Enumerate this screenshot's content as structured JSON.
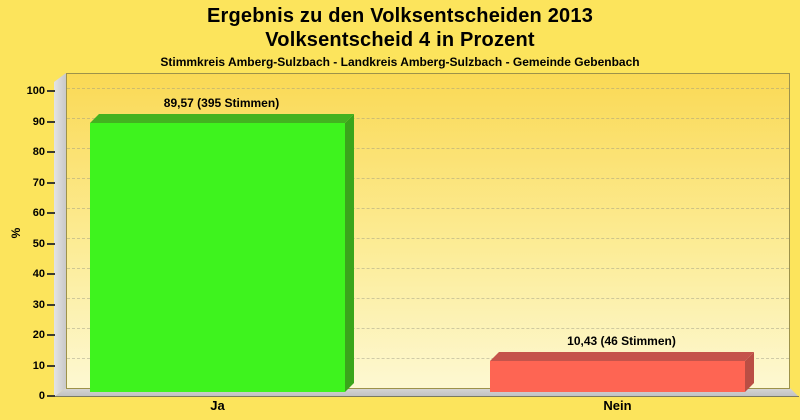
{
  "header": {
    "title_line1": "Ergebnis zu den Volksentscheiden 2013",
    "title_line2": "Volksentscheid 4 in Prozent",
    "subtitle": "Stimmkreis Amberg-Sulzbach - Landkreis Amberg-Sulzbach - Gemeinde Gebenbach"
  },
  "chart_data": {
    "type": "bar",
    "categories": [
      "Ja",
      "Nein"
    ],
    "values": [
      89.57,
      10.43
    ],
    "votes": [
      395,
      46
    ],
    "value_labels": [
      "89,57 (395 Stimmen)",
      "10,43 (46 Stimmen)"
    ],
    "ylabel": "%",
    "ylim": [
      0,
      100
    ],
    "yticks": [
      0,
      10,
      20,
      30,
      40,
      50,
      60,
      70,
      80,
      90,
      100
    ],
    "grid": "dashed horizontal",
    "legend": "none",
    "style": "3d-bars on yellow gradient back wall, gray side wall and floor",
    "colors": {
      "background": "#FCE45C",
      "series": [
        {
          "name": "Ja",
          "front": "#3EF31E",
          "top": "#43B220",
          "side": "#3AA51B"
        },
        {
          "name": "Nein",
          "front": "#FE6553",
          "top": "#C5544B",
          "side": "#BA4E44"
        }
      ]
    }
  }
}
